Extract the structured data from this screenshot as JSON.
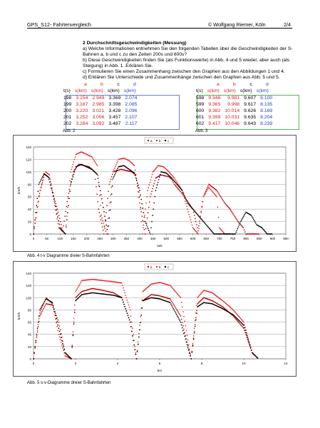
{
  "header": {
    "left": "GPS_S12- Fahrtenvergleich",
    "middle": "© Wolfgang Riemer, Köln",
    "right": "2/4"
  },
  "task": {
    "heading": "2 Durchschnittsgeschwindigkeiten (Messung)",
    "lines": [
      "a) Welche Informationen entnehmen Sie den folgenden Tabellen über die Geschwindigkeiten der S-Bahnen a, b und c zu den Zeiten 200s und 600s?",
      "b) Diese Geschwindigkeiten finden Sie (als Funktionswerte) in Abb. 4 und 5 wieder, aber auch (als Steigung) in Abb. 1 .Erklären Sie.",
      "c) Formulieren Sie einen Zusammenhang zwischen den Graphen aus den Abbildungen 1 und 4.",
      "d) Erklären Sie Unterschiede und Zusammenhänge zwischen den Graphen aus Abb. 5 und 5."
    ]
  },
  "table_left": {
    "letters": [
      "a",
      "b",
      "c",
      "d"
    ],
    "headers": [
      "t(s)",
      "s(km)",
      "s(km)",
      "s(km)",
      "s(km)"
    ],
    "rows": [
      [
        "198",
        "3.154",
        "2.949",
        "3.369",
        "2.074"
      ],
      [
        "199",
        "3.187",
        "2.985",
        "3.398",
        "2.085"
      ],
      [
        "200",
        "3.220",
        "3.021",
        "3.428",
        "2.096"
      ],
      [
        "201",
        "3.252",
        "3.056",
        "3.457",
        "2.107"
      ],
      [
        "202",
        "3.284",
        "3.092",
        "3.487",
        "2.117"
      ]
    ],
    "caption": "Abb. 2"
  },
  "table_right": {
    "letters": [
      "a",
      "b",
      "c",
      "d"
    ],
    "headers": [
      "t(s)",
      "s(km)",
      "s(km)",
      "s(km)",
      "s(km)"
    ],
    "rows": [
      [
        "598",
        "9.348",
        "9.981",
        "9.607",
        "8.100"
      ],
      [
        "599",
        "9.365",
        "9.998",
        "9.617",
        "8.135"
      ],
      [
        "600",
        "9.382",
        "10.014",
        "9.626",
        "8.169"
      ],
      [
        "601",
        "9.399",
        "10.031",
        "9.635",
        "8.204"
      ],
      [
        "602",
        "9.417",
        "10.046",
        "9.643",
        "8.239"
      ]
    ],
    "caption": "Abb. 3"
  },
  "colors": {
    "a": "#c00000",
    "b": "#f02020",
    "c": "#000000",
    "blue": "#1f3fbf",
    "green_border": "#5ab55a"
  },
  "chart_data": [
    {
      "type": "scatter",
      "legend": [
        "a",
        "b",
        "c"
      ],
      "legend_position": "top-center",
      "ylabel": "km/h",
      "xlabel": "sek",
      "xlim": [
        0,
        950
      ],
      "ylim": [
        0,
        140
      ],
      "xticks": [
        0,
        50,
        100,
        150,
        200,
        250,
        300,
        350,
        400,
        450,
        500,
        550,
        600,
        650,
        700,
        750,
        800,
        850,
        900,
        950
      ],
      "yticks": [
        0,
        20,
        40,
        60,
        80,
        100,
        120,
        140
      ],
      "grid": true,
      "series": [
        {
          "name": "a",
          "x": [
            0,
            20,
            40,
            55,
            70,
            90,
            110,
            130,
            150,
            170,
            190,
            210,
            230,
            245,
            265,
            285,
            300,
            330,
            350,
            370,
            385,
            400,
            420,
            440,
            460,
            480,
            510,
            520,
            530,
            560,
            600,
            620,
            640,
            660,
            690,
            720,
            740,
            770,
            790,
            800,
            810,
            820,
            840,
            850
          ],
          "y": [
            0,
            60,
            96,
            92,
            70,
            40,
            5,
            60,
            100,
            112,
            110,
            108,
            100,
            40,
            0,
            80,
            100,
            104,
            102,
            100,
            95,
            50,
            0,
            60,
            90,
            95,
            92,
            88,
            80,
            65,
            40,
            5,
            60,
            80,
            70,
            50,
            40,
            20,
            10,
            0,
            0,
            0,
            0,
            0
          ]
        },
        {
          "name": "b",
          "x": [
            0,
            25,
            45,
            60,
            75,
            95,
            120,
            140,
            160,
            180,
            200,
            220,
            240,
            255,
            275,
            300,
            320,
            340,
            360,
            380,
            400,
            410,
            430,
            450,
            470,
            490,
            510,
            530,
            560,
            580,
            600,
            620,
            640,
            660,
            690,
            700,
            720,
            740
          ],
          "y": [
            0,
            70,
            100,
            95,
            60,
            10,
            0,
            100,
            128,
            132,
            128,
            124,
            110,
            30,
            0,
            100,
            120,
            122,
            118,
            110,
            60,
            0,
            70,
            100,
            110,
            108,
            100,
            90,
            70,
            40,
            10,
            0,
            60,
            75,
            60,
            10,
            0,
            0
          ]
        },
        {
          "name": "c",
          "x": [
            0,
            20,
            40,
            60,
            80,
            100,
            120,
            140,
            160,
            180,
            200,
            220,
            240,
            260,
            280,
            300,
            320,
            340,
            360,
            380,
            400,
            420,
            440,
            460,
            480,
            500,
            520,
            540,
            560,
            580,
            600,
            620,
            640,
            660,
            680,
            700,
            720,
            740,
            760,
            780,
            800,
            820,
            840,
            860,
            880,
            900
          ],
          "y": [
            0,
            80,
            97,
            90,
            50,
            10,
            0,
            80,
            108,
            112,
            108,
            104,
            96,
            50,
            0,
            90,
            108,
            110,
            104,
            98,
            70,
            20,
            0,
            70,
            100,
            98,
            90,
            80,
            70,
            50,
            40,
            30,
            20,
            10,
            0,
            0,
            0,
            0,
            0,
            20,
            35,
            30,
            15,
            10,
            0,
            0
          ]
        }
      ]
    },
    {
      "type": "scatter",
      "legend": [
        "a",
        "b",
        "c"
      ],
      "legend_position": "top-center",
      "ylabel": "km/h",
      "xlabel": "km",
      "xlim": [
        0,
        12
      ],
      "ylim": [
        0,
        140
      ],
      "xticks": [
        0,
        2,
        4,
        6,
        8,
        10,
        12
      ],
      "yticks": [
        0,
        20,
        40,
        60,
        80,
        100,
        120,
        140
      ],
      "grid": true,
      "series": [
        {
          "name": "a",
          "x": [
            0,
            0.3,
            0.6,
            0.9,
            1.2,
            1.5,
            1.8,
            2.0,
            2.3,
            2.8,
            3.3,
            3.8,
            4.2,
            4.6,
            4.9,
            5.2,
            5.6,
            6.0,
            6.5,
            7.0,
            7.5,
            7.8,
            8.1,
            8.5,
            9.0,
            9.5,
            10.0,
            10.4,
            10.7
          ],
          "y": [
            0,
            70,
            90,
            88,
            60,
            10,
            0,
            100,
            110,
            115,
            112,
            108,
            100,
            60,
            0,
            95,
            105,
            103,
            98,
            70,
            0,
            90,
            100,
            95,
            85,
            70,
            50,
            10,
            0
          ]
        },
        {
          "name": "b",
          "x": [
            0,
            0.3,
            0.6,
            0.9,
            1.2,
            1.5,
            1.8,
            2.0,
            2.3,
            2.8,
            3.3,
            3.8,
            4.2,
            4.6,
            4.9,
            5.2,
            5.6,
            6.0,
            6.5,
            7.0,
            7.5,
            7.8,
            8.1,
            8.5,
            9.0,
            9.5,
            10.0,
            10.4,
            10.7
          ],
          "y": [
            0,
            75,
            100,
            90,
            40,
            5,
            0,
            110,
            128,
            130,
            128,
            126,
            124,
            80,
            0,
            110,
            122,
            125,
            120,
            100,
            0,
            100,
            112,
            108,
            95,
            80,
            60,
            10,
            0
          ]
        },
        {
          "name": "c",
          "x": [
            0,
            0.3,
            0.6,
            0.9,
            1.2,
            1.5,
            1.8,
            2.0,
            2.3,
            2.8,
            3.3,
            3.8,
            4.2,
            4.6,
            4.9,
            5.2,
            5.6,
            6.0,
            6.5,
            7.0,
            7.5,
            7.8,
            8.1,
            8.5,
            9.0,
            9.5,
            10.0,
            10.4,
            10.7
          ],
          "y": [
            0,
            80,
            98,
            92,
            50,
            10,
            0,
            95,
            105,
            108,
            106,
            104,
            100,
            60,
            0,
            95,
            100,
            98,
            92,
            60,
            0,
            85,
            92,
            90,
            82,
            72,
            55,
            10,
            0
          ]
        }
      ]
    }
  ],
  "captions": {
    "fig4": "Abb. 4 t-v Diagramme dreier S-Bahnfahrten",
    "fig5": "Abb. 5 s-v-Diagramme dreier S-Bahnfahrten"
  }
}
